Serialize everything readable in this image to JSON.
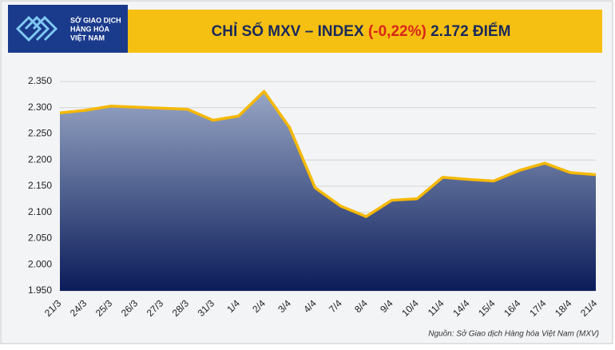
{
  "logo": {
    "lines": [
      "SỞ GIAO DỊCH",
      "HÀNG HÓA",
      "VIỆT NAM"
    ]
  },
  "chart_data": {
    "type": "area",
    "title_parts": [
      "CHỈ SỐ MXV – INDEX",
      "(-0,22%)",
      "2.172 ĐIỂM"
    ],
    "categories": [
      "21/3",
      "24/3",
      "25/3",
      "26/3",
      "27/3",
      "28/3",
      "31/3",
      "1/4",
      "2/4",
      "3/4",
      "4/4",
      "7/4",
      "8/4",
      "9/4",
      "10/4",
      "11/4",
      "14/4",
      "15/4",
      "16/4",
      "17/4",
      "18/4",
      "21/4"
    ],
    "values": [
      2290,
      2295,
      2303,
      2301,
      2299,
      2297,
      2276,
      2284,
      2331,
      2262,
      2147,
      2112,
      2092,
      2123,
      2126,
      2167,
      2163,
      2160,
      2180,
      2194,
      2176,
      2172
    ],
    "color": "#f5b800",
    "ylim": [
      1950,
      2350
    ],
    "yticks": [
      {
        "value": 1950,
        "label": "1.950"
      },
      {
        "value": 2000,
        "label": "2.000"
      },
      {
        "value": 2050,
        "label": "2.050"
      },
      {
        "value": 2100,
        "label": "2.100"
      },
      {
        "value": 2150,
        "label": "2.150"
      },
      {
        "value": 2200,
        "label": "2.200"
      },
      {
        "value": 2250,
        "label": "2.250"
      },
      {
        "value": 2300,
        "label": "2.300"
      },
      {
        "value": 2350,
        "label": "2.350"
      }
    ],
    "grid": true,
    "source": "Nguồn: Sở Giao dịch Hàng hóa Việt Nam (MXV)"
  }
}
